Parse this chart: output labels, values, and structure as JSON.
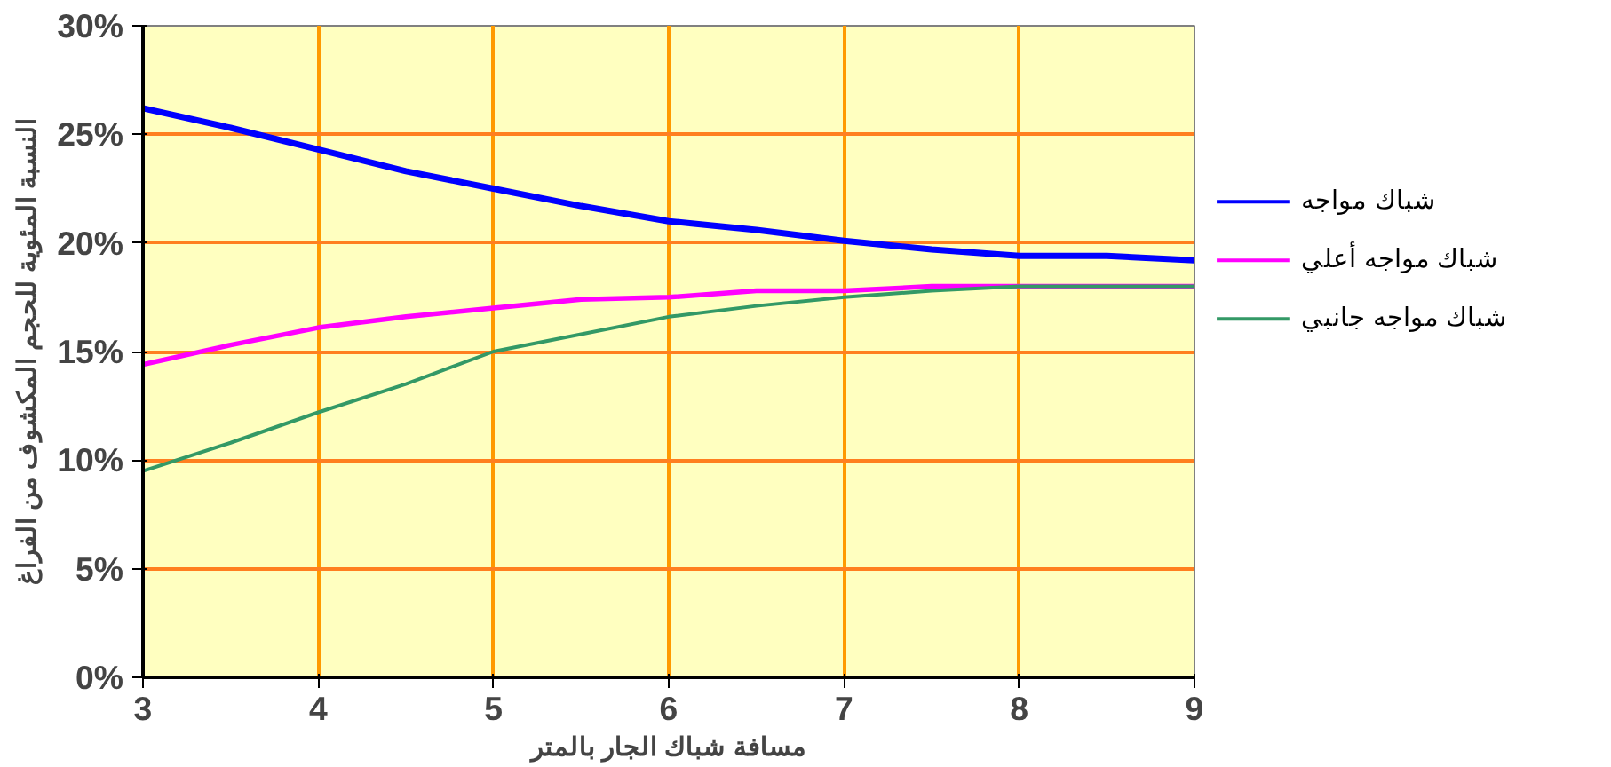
{
  "chart_data": {
    "type": "line",
    "xlabel": "مسافة شباك الجار بالمتر",
    "ylabel": "النسبة المئوية للحجم المكشوف من الفراغ",
    "x": [
      3,
      3.5,
      4,
      4.5,
      5,
      5.5,
      6,
      6.5,
      7,
      7.5,
      8,
      8.5,
      9
    ],
    "series": [
      {
        "name": "شباك مواجه",
        "color": "#0000ff",
        "values": [
          26.2,
          25.3,
          24.3,
          23.3,
          22.5,
          21.7,
          21.0,
          20.6,
          20.1,
          19.7,
          19.4,
          19.4,
          19.2
        ]
      },
      {
        "name": "شباك  مواجه أعلي",
        "color": "#ff00ff",
        "values": [
          14.4,
          15.3,
          16.1,
          16.6,
          17.0,
          17.4,
          17.5,
          17.8,
          17.8,
          18.0,
          18.0,
          18.0,
          18.0
        ]
      },
      {
        "name": "شباك  مواجه جانبي",
        "color": "#339966",
        "values": [
          9.5,
          10.8,
          12.2,
          13.5,
          15.0,
          15.8,
          16.6,
          17.1,
          17.5,
          17.8,
          18.0,
          18.0,
          18.0
        ]
      }
    ],
    "xlim": [
      3,
      9
    ],
    "xticks": [
      3,
      4,
      5,
      6,
      7,
      8,
      9
    ],
    "ylim": [
      0,
      30
    ],
    "yticks": [
      {
        "value": 0,
        "label": "0%"
      },
      {
        "value": 5,
        "label": "5%"
      },
      {
        "value": 10,
        "label": "10%"
      },
      {
        "value": 15,
        "label": "15%"
      },
      {
        "value": 20,
        "label": "20%"
      },
      {
        "value": 25,
        "label": "25%"
      },
      {
        "value": 30,
        "label": "30%"
      }
    ],
    "grid": true,
    "legend": "right",
    "marker": "none",
    "line_style": "solid"
  }
}
